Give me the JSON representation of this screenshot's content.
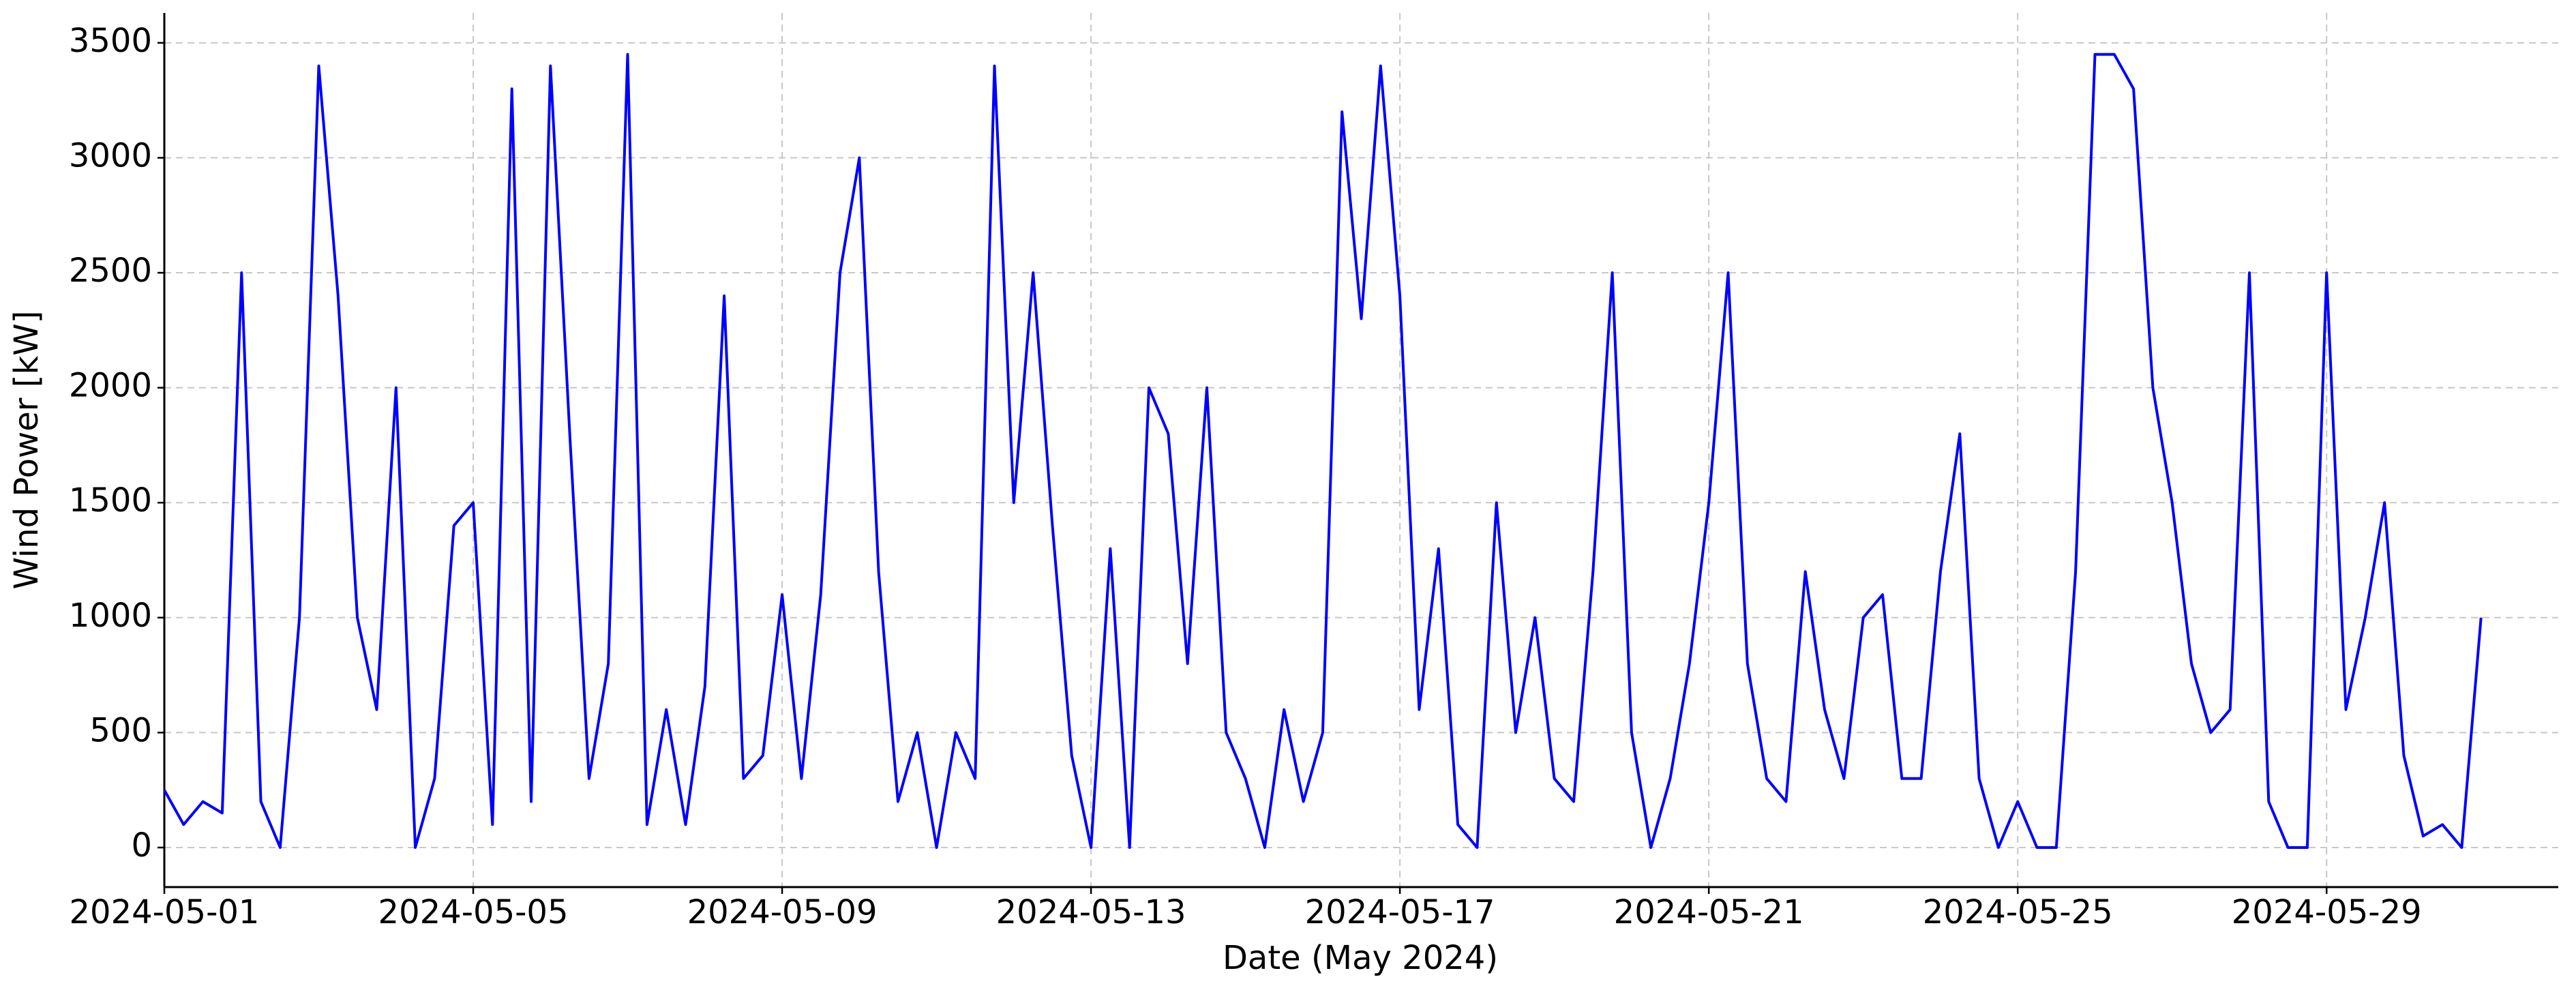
{
  "chart_data": {
    "type": "line",
    "xlabel": "Date (May 2024)",
    "ylabel": "Wind Power [kW]",
    "color": "#0000ff",
    "grid": true,
    "x": [
      "2024-05-01T00:00",
      "2024-05-01T06:00",
      "2024-05-01T12:00",
      "2024-05-01T18:00",
      "2024-05-02T00:00",
      "2024-05-02T06:00",
      "2024-05-02T12:00",
      "2024-05-02T18:00",
      "2024-05-03T00:00",
      "2024-05-03T06:00",
      "2024-05-03T12:00",
      "2024-05-03T18:00",
      "2024-05-04T00:00",
      "2024-05-04T06:00",
      "2024-05-04T12:00",
      "2024-05-04T18:00",
      "2024-05-05T00:00",
      "2024-05-05T06:00",
      "2024-05-05T12:00",
      "2024-05-05T18:00",
      "2024-05-06T00:00",
      "2024-05-06T06:00",
      "2024-05-06T12:00",
      "2024-05-06T18:00",
      "2024-05-07T00:00",
      "2024-05-07T06:00",
      "2024-05-07T12:00",
      "2024-05-07T18:00",
      "2024-05-08T00:00",
      "2024-05-08T06:00",
      "2024-05-08T12:00",
      "2024-05-08T18:00",
      "2024-05-09T00:00",
      "2024-05-09T06:00",
      "2024-05-09T12:00",
      "2024-05-09T18:00",
      "2024-05-10T00:00",
      "2024-05-10T06:00",
      "2024-05-10T12:00",
      "2024-05-10T18:00",
      "2024-05-11T00:00",
      "2024-05-11T06:00",
      "2024-05-11T12:00",
      "2024-05-11T18:00",
      "2024-05-12T00:00",
      "2024-05-12T06:00",
      "2024-05-12T12:00",
      "2024-05-12T18:00",
      "2024-05-13T00:00",
      "2024-05-13T06:00",
      "2024-05-13T12:00",
      "2024-05-13T18:00",
      "2024-05-14T00:00",
      "2024-05-14T06:00",
      "2024-05-14T12:00",
      "2024-05-14T18:00",
      "2024-05-15T00:00",
      "2024-05-15T06:00",
      "2024-05-15T12:00",
      "2024-05-15T18:00",
      "2024-05-16T00:00",
      "2024-05-16T06:00",
      "2024-05-16T12:00",
      "2024-05-16T18:00",
      "2024-05-17T00:00",
      "2024-05-17T06:00",
      "2024-05-17T12:00",
      "2024-05-17T18:00",
      "2024-05-18T00:00",
      "2024-05-18T06:00",
      "2024-05-18T12:00",
      "2024-05-18T18:00",
      "2024-05-19T00:00",
      "2024-05-19T06:00",
      "2024-05-19T12:00",
      "2024-05-19T18:00",
      "2024-05-20T00:00",
      "2024-05-20T06:00",
      "2024-05-20T12:00",
      "2024-05-20T18:00",
      "2024-05-21T00:00",
      "2024-05-21T06:00",
      "2024-05-21T12:00",
      "2024-05-21T18:00",
      "2024-05-22T00:00",
      "2024-05-22T06:00",
      "2024-05-22T12:00",
      "2024-05-22T18:00",
      "2024-05-23T00:00",
      "2024-05-23T06:00",
      "2024-05-23T12:00",
      "2024-05-23T18:00",
      "2024-05-24T00:00",
      "2024-05-24T06:00",
      "2024-05-24T12:00",
      "2024-05-24T18:00",
      "2024-05-25T00:00",
      "2024-05-25T06:00",
      "2024-05-25T12:00",
      "2024-05-25T18:00",
      "2024-05-26T00:00",
      "2024-05-26T06:00",
      "2024-05-26T12:00",
      "2024-05-26T18:00",
      "2024-05-27T00:00",
      "2024-05-27T06:00",
      "2024-05-27T12:00",
      "2024-05-27T18:00",
      "2024-05-28T00:00",
      "2024-05-28T06:00",
      "2024-05-28T12:00",
      "2024-05-28T18:00",
      "2024-05-29T00:00",
      "2024-05-29T06:00",
      "2024-05-29T12:00",
      "2024-05-29T18:00",
      "2024-05-30T00:00",
      "2024-05-30T06:00",
      "2024-05-30T12:00",
      "2024-05-30T18:00",
      "2024-05-31T00:00"
    ],
    "values": [
      250,
      100,
      200,
      150,
      2500,
      200,
      0,
      1000,
      3400,
      2400,
      1000,
      600,
      2000,
      0,
      300,
      1400,
      1500,
      100,
      3300,
      200,
      3400,
      1800,
      300,
      800,
      3450,
      100,
      600,
      100,
      700,
      2400,
      300,
      400,
      1100,
      300,
      1100,
      2500,
      3000,
      1200,
      200,
      500,
      0,
      500,
      300,
      3400,
      1500,
      2500,
      1400,
      400,
      0,
      1300,
      0,
      2000,
      1800,
      800,
      2000,
      500,
      300,
      0,
      600,
      200,
      500,
      3200,
      2300,
      3400,
      2400,
      600,
      1300,
      100,
      0,
      1500,
      500,
      1000,
      300,
      200,
      1200,
      2500,
      500,
      0,
      300,
      800,
      1500,
      2500,
      800,
      300,
      200,
      1200,
      600,
      300,
      1000,
      1100,
      300,
      300,
      1200,
      1800,
      300,
      0,
      200,
      0,
      0,
      1200,
      3450,
      3450,
      3300,
      2000,
      1500,
      800,
      500,
      600,
      2500,
      200,
      0,
      0,
      2500,
      600,
      1000,
      1500,
      400,
      50,
      100,
      0,
      1000
    ],
    "xlim": [
      "2024-05-01",
      "2024-06-01"
    ],
    "xticks": [
      "2024-05-01",
      "2024-05-05",
      "2024-05-09",
      "2024-05-13",
      "2024-05-17",
      "2024-05-21",
      "2024-05-25",
      "2024-05-29"
    ],
    "ylim": [
      -172,
      3630
    ],
    "yticks": [
      0,
      500,
      1000,
      1500,
      2000,
      2500,
      3000,
      3500
    ]
  }
}
